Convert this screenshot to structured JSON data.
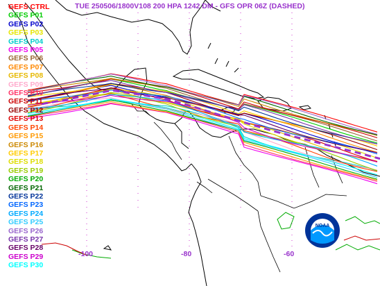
{
  "header": {
    "title": "TUE 250506/1800V108  200 HPA 1242 DM - GFS OPR 06Z (DASHED)"
  },
  "legend": {
    "items": [
      {
        "label": "GEFS CTRL",
        "color": "#ff0000"
      },
      {
        "label": "GEFS P01",
        "color": "#00cc00"
      },
      {
        "label": "GEFS P02",
        "color": "#0000cc"
      },
      {
        "label": "GEFS P03",
        "color": "#e6e600"
      },
      {
        "label": "GEFS P04",
        "color": "#00cccc"
      },
      {
        "label": "GEFS P05",
        "color": "#ee00ee"
      },
      {
        "label": "GEFS P06",
        "color": "#996633"
      },
      {
        "label": "GEFS P07",
        "color": "#ff8800"
      },
      {
        "label": "GEFS P08",
        "color": "#e6b800"
      },
      {
        "label": "GEFS P09",
        "color": "#ffaacc"
      },
      {
        "label": "GEFS P10",
        "color": "#ff3366"
      },
      {
        "label": "GEFS P11",
        "color": "#cc0000"
      },
      {
        "label": "GEFS P12",
        "color": "#990000"
      },
      {
        "label": "GEFS P13",
        "color": "#dd0000"
      },
      {
        "label": "GEFS P14",
        "color": "#ff4400"
      },
      {
        "label": "GEFS P15",
        "color": "#ff9900"
      },
      {
        "label": "GEFS P16",
        "color": "#cc8800"
      },
      {
        "label": "GEFS P17",
        "color": "#ffcc00"
      },
      {
        "label": "GEFS P18",
        "color": "#dddd00"
      },
      {
        "label": "GEFS P19",
        "color": "#99cc00"
      },
      {
        "label": "GEFS P20",
        "color": "#00aa00"
      },
      {
        "label": "GEFS P21",
        "color": "#006600"
      },
      {
        "label": "GEFS P22",
        "color": "#003399"
      },
      {
        "label": "GEFS P23",
        "color": "#0066ff"
      },
      {
        "label": "GEFS P24",
        "color": "#00aaff"
      },
      {
        "label": "GEFS P25",
        "color": "#33ccff"
      },
      {
        "label": "GEFS P26",
        "color": "#9966cc"
      },
      {
        "label": "GEFS P27",
        "color": "#7733aa"
      },
      {
        "label": "GEFS P28",
        "color": "#660066"
      },
      {
        "label": "GEFS P29",
        "color": "#cc00cc"
      },
      {
        "label": "GEFS P30",
        "color": "#00ffff"
      }
    ]
  },
  "map": {
    "longitude_labels": [
      {
        "text": "-100",
        "lon": -100
      },
      {
        "text": "-80",
        "lon": -80
      },
      {
        "text": "-60",
        "lon": -60
      }
    ],
    "opr_color": "#9933cc",
    "coast_color": "#000000",
    "gridline_color": "#cc33cc"
  },
  "logo": {
    "text": "NOAA"
  }
}
